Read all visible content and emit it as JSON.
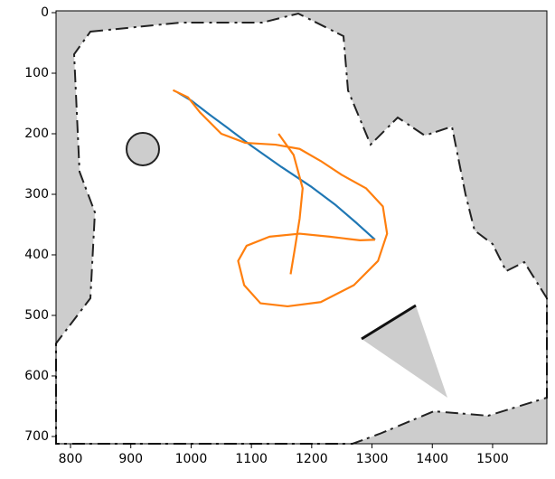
{
  "chart_data": {
    "type": "line",
    "xlim": [
      776,
      1590
    ],
    "ylim": [
      712,
      -3
    ],
    "xticks": [
      800,
      900,
      1000,
      1100,
      1200,
      1300,
      1400,
      1500
    ],
    "yticks": [
      0,
      100,
      200,
      300,
      400,
      500,
      600,
      700
    ],
    "series": [
      {
        "color": "#1f77b4",
        "x": [
          978,
          1000,
          1030,
          1060,
          1100,
          1150,
          1200,
          1240,
          1275,
          1305
        ],
        "values": [
          132,
          145,
          168,
          190,
          220,
          255,
          288,
          318,
          348,
          375
        ]
      },
      {
        "color": "#ff7f0e",
        "x": [
          970,
          995,
          1015,
          1050,
          1090,
          1140,
          1180,
          1215,
          1250,
          1290,
          1318,
          1325,
          1310,
          1270,
          1215,
          1160,
          1115,
          1088,
          1078,
          1092,
          1130,
          1180,
          1230,
          1280,
          1305,
          null,
          1145,
          1170,
          1185,
          1180,
          1172,
          1165
        ],
        "values": [
          128,
          140,
          165,
          200,
          215,
          218,
          225,
          245,
          268,
          290,
          320,
          365,
          410,
          450,
          478,
          485,
          480,
          450,
          410,
          385,
          370,
          365,
          370,
          376,
          375,
          null,
          200,
          235,
          290,
          340,
          390,
          432
        ]
      }
    ]
  }
}
